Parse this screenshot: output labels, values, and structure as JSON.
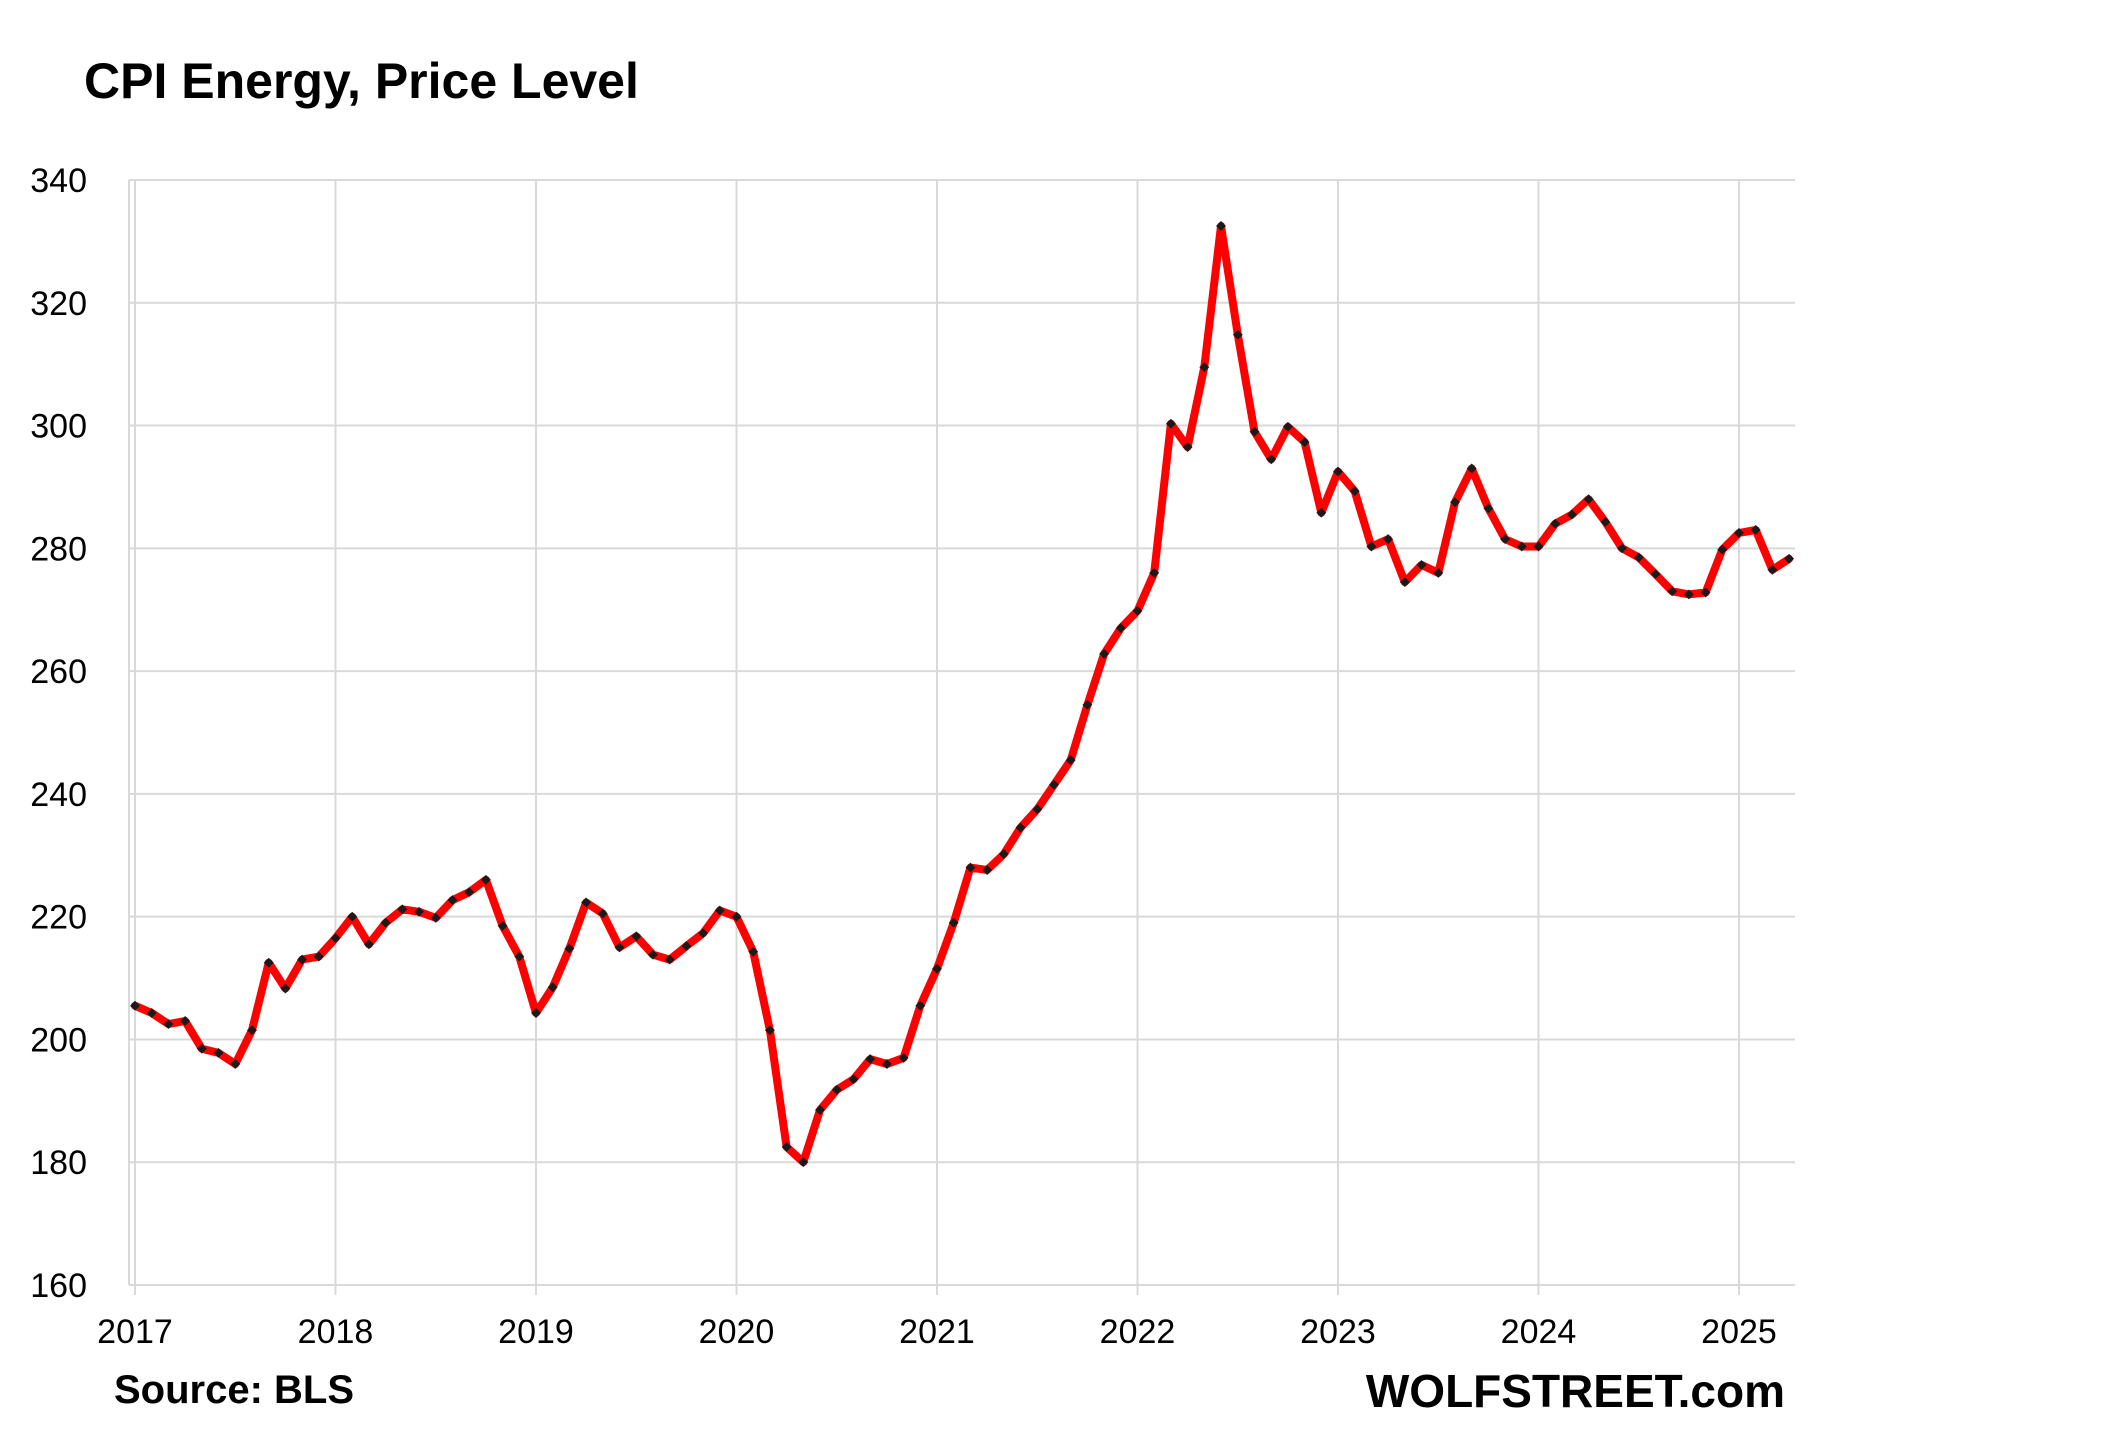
{
  "title": "CPI Energy, Price Level",
  "source": "Source: BLS",
  "brand": "WOLFSTREET.com",
  "colors": {
    "line": "#ff0000",
    "marker": "#1a1a1a",
    "grid": "#d9d9d9"
  },
  "chart_data": {
    "type": "line",
    "title": "CPI Energy, Price Level",
    "xlabel": "",
    "ylabel": "",
    "ylim": [
      160,
      340
    ],
    "yticks": [
      160,
      180,
      200,
      220,
      240,
      260,
      280,
      300,
      320,
      340
    ],
    "xticks": [
      "2017",
      "2018",
      "2019",
      "2020",
      "2021",
      "2022",
      "2023",
      "2024",
      "2025"
    ],
    "xlim": [
      "2017-01",
      "2025-04"
    ],
    "grid": true,
    "legend": "none",
    "x": [
      "2017-01",
      "2017-02",
      "2017-03",
      "2017-04",
      "2017-05",
      "2017-06",
      "2017-07",
      "2017-08",
      "2017-09",
      "2017-10",
      "2017-11",
      "2017-12",
      "2018-01",
      "2018-02",
      "2018-03",
      "2018-04",
      "2018-05",
      "2018-06",
      "2018-07",
      "2018-08",
      "2018-09",
      "2018-10",
      "2018-11",
      "2018-12",
      "2019-01",
      "2019-02",
      "2019-03",
      "2019-04",
      "2019-05",
      "2019-06",
      "2019-07",
      "2019-08",
      "2019-09",
      "2019-10",
      "2019-11",
      "2019-12",
      "2020-01",
      "2020-02",
      "2020-03",
      "2020-04",
      "2020-05",
      "2020-06",
      "2020-07",
      "2020-08",
      "2020-09",
      "2020-10",
      "2020-11",
      "2020-12",
      "2021-01",
      "2021-02",
      "2021-03",
      "2021-04",
      "2021-05",
      "2021-06",
      "2021-07",
      "2021-08",
      "2021-09",
      "2021-10",
      "2021-11",
      "2021-12",
      "2022-01",
      "2022-02",
      "2022-03",
      "2022-04",
      "2022-05",
      "2022-06",
      "2022-07",
      "2022-08",
      "2022-09",
      "2022-10",
      "2022-11",
      "2022-12",
      "2023-01",
      "2023-02",
      "2023-03",
      "2023-04",
      "2023-05",
      "2023-06",
      "2023-07",
      "2023-08",
      "2023-09",
      "2023-10",
      "2023-11",
      "2023-12",
      "2024-01",
      "2024-02",
      "2024-03",
      "2024-04",
      "2024-05",
      "2024-06",
      "2024-07",
      "2024-08",
      "2024-09",
      "2024-10",
      "2024-11",
      "2024-12",
      "2025-01",
      "2025-02",
      "2025-03",
      "2025-04"
    ],
    "series": [
      {
        "name": "",
        "values": [
          205.5,
          204.3,
          202.5,
          203.0,
          198.5,
          197.8,
          196.0,
          201.5,
          212.5,
          208.3,
          213.0,
          213.5,
          216.5,
          220.0,
          215.5,
          219.0,
          221.2,
          220.8,
          219.8,
          222.7,
          224.0,
          226.0,
          218.5,
          213.5,
          204.3,
          208.5,
          214.8,
          222.3,
          220.5,
          215.0,
          216.8,
          213.8,
          213.0,
          215.2,
          217.3,
          221.0,
          220.0,
          214.3,
          201.5,
          182.5,
          180.0,
          188.5,
          191.8,
          193.5,
          196.8,
          196.0,
          197.0,
          205.5,
          211.5,
          219.0,
          228.0,
          227.6,
          230.2,
          234.5,
          237.5,
          241.5,
          245.5,
          254.5,
          262.8,
          267.0,
          269.8,
          276.0,
          300.3,
          296.5,
          309.5,
          332.5,
          314.8,
          299.0,
          294.5,
          299.8,
          297.3,
          285.8,
          292.5,
          289.3,
          280.3,
          281.5,
          274.5,
          277.3,
          276.0,
          287.5,
          293.0,
          286.5,
          281.5,
          280.3,
          280.3,
          284.0,
          285.5,
          288.0,
          284.3,
          280.0,
          278.5,
          275.8,
          273.0,
          272.5,
          272.8,
          279.8,
          282.5,
          283.0,
          276.5,
          278.3
        ]
      }
    ]
  }
}
